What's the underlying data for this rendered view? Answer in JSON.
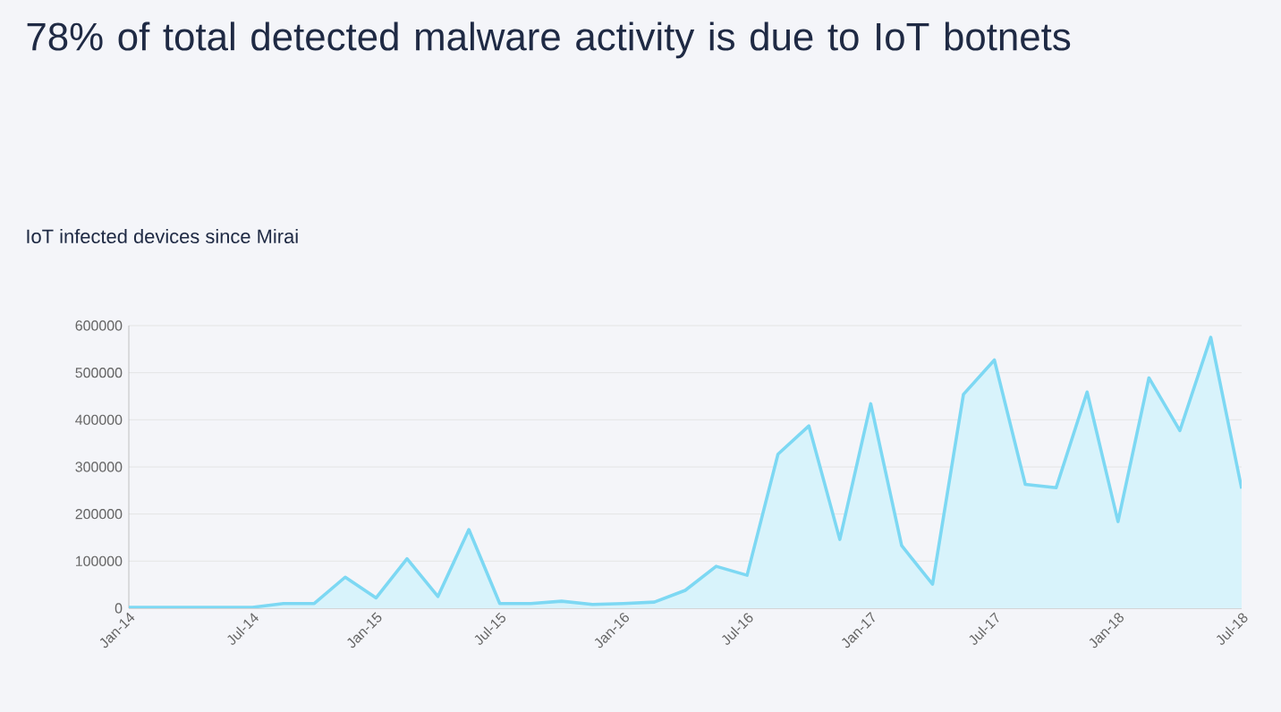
{
  "chart_data": {
    "type": "area",
    "title": "78% of total detected malware activity is due to IoT botnets",
    "subtitle": "IoT infected devices since Mirai",
    "categories": [
      "Jan-14",
      null,
      null,
      null,
      "Jul-14",
      null,
      null,
      null,
      "Jan-15",
      null,
      null,
      null,
      "Jul-15",
      null,
      null,
      null,
      "Jan-16",
      null,
      null,
      null,
      "Jul-16",
      null,
      null,
      null,
      "Jan-17",
      null,
      null,
      null,
      "Jul-17",
      null,
      null,
      null,
      "Jan-18",
      null,
      null,
      null,
      "Jul-18"
    ],
    "series": [
      {
        "color": "#7dd8f3",
        "values": [
          2000,
          2000,
          2000,
          2000,
          2000,
          10000,
          10000,
          66000,
          22000,
          105000,
          25000,
          167000,
          10000,
          10000,
          15000,
          8000,
          10000,
          13000,
          38000,
          89000,
          70000,
          327000,
          387000,
          146000,
          434000,
          133000,
          51000,
          454000,
          527000,
          263000,
          256000,
          459000,
          184000,
          489000,
          377000,
          575000,
          254000
        ]
      }
    ],
    "ylim": [
      0,
      600000
    ],
    "yticks": [
      0,
      100000,
      200000,
      300000,
      400000,
      500000,
      600000
    ],
    "grid": "y"
  }
}
